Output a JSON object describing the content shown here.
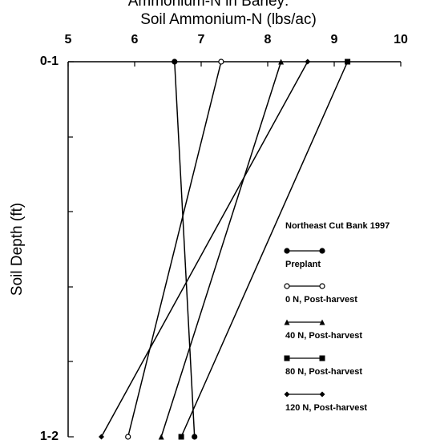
{
  "chart_data": {
    "type": "line",
    "title": "Ammonium-N in Barley:",
    "x_label": "Soil Ammonium-N (lbs/ac)",
    "y_label": "Soil Depth (ft)",
    "categories": [
      "0-1",
      "1-2"
    ],
    "xlim": [
      5,
      10
    ],
    "xticks": [
      5,
      6,
      7,
      8,
      9,
      10
    ],
    "legend_title": "Northeast Cut Bank 1997",
    "series": [
      {
        "name": "Preplant",
        "color": "#000000",
        "marker": "circle",
        "values": [
          6.6,
          6.9
        ]
      },
      {
        "name": "0 N, Post-harvest",
        "color": "#000000",
        "marker": "open-circle",
        "values": [
          7.3,
          5.9
        ]
      },
      {
        "name": "40 N, Post-harvest",
        "color": "#000000",
        "marker": "triangle",
        "values": [
          8.2,
          6.4
        ]
      },
      {
        "name": "80 N, Post-harvest",
        "color": "#000000",
        "marker": "square",
        "values": [
          9.2,
          6.7
        ]
      },
      {
        "name": "120 N, Post-harvest",
        "color": "#000000",
        "marker": "diamond",
        "values": [
          8.6,
          5.5
        ]
      }
    ]
  }
}
